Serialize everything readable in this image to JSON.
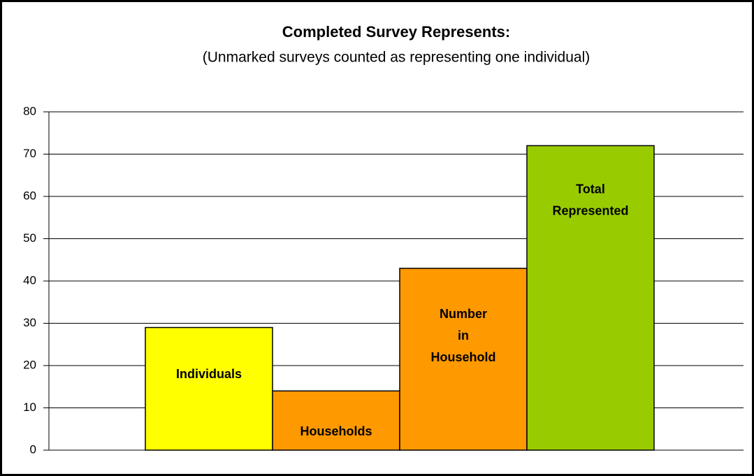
{
  "chart_data": {
    "type": "bar",
    "title": "Completed Survey Represents:",
    "subtitle": "(Unmarked surveys counted as representing one individual)",
    "categories": [
      [
        "Individuals"
      ],
      [
        "Households"
      ],
      [
        "Number",
        "in",
        "Household"
      ],
      [
        "Total",
        "Represented"
      ]
    ],
    "values": [
      29,
      14,
      43,
      72
    ],
    "colors": [
      "#ffff00",
      "#ff9900",
      "#ff9900",
      "#99cc00"
    ],
    "ylim": [
      0,
      80
    ],
    "yticks": [
      0,
      10,
      20,
      30,
      40,
      50,
      60,
      70,
      80
    ],
    "grid": true
  }
}
